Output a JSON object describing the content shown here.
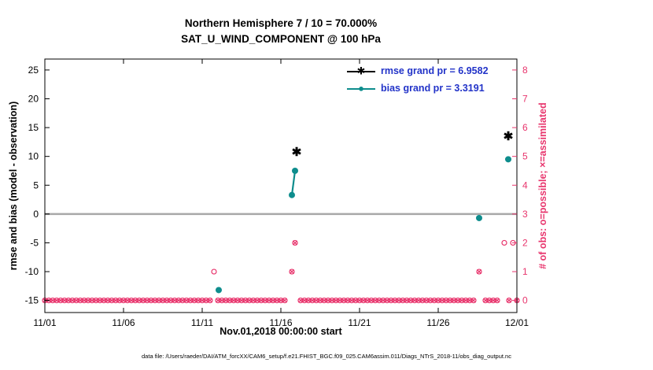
{
  "footer": {
    "text": "data file: /Users/raeder/DAI/ATM_forcXX/CAM6_setup/f.e21.FHIST_BGC.f09_025.CAM6assim.011/Diags_NTrS_2018-11/obs_diag_output.nc"
  },
  "chart_data": {
    "type": "line",
    "title": "Northern Hemisphere 7 / 10 = 70.000%",
    "subtitle": "SAT_U_WIND_COMPONENT @ 100 hPa",
    "xlabel": "Nov.01,2018 00:00:00 start",
    "ylabel_left": "rmse and bias (model - observation)",
    "ylabel_right": "# of obs: o=possible; ×=assimilated",
    "xlim": [
      0,
      30
    ],
    "ylim_left": [
      -17.1,
      26.9
    ],
    "x_ticks": [
      {
        "day": 0,
        "label": "11/01"
      },
      {
        "day": 5,
        "label": "11/06"
      },
      {
        "day": 10,
        "label": "11/11"
      },
      {
        "day": 15,
        "label": "11/16"
      },
      {
        "day": 20,
        "label": "11/21"
      },
      {
        "day": 25,
        "label": "11/26"
      },
      {
        "day": 30,
        "label": "12/01"
      }
    ],
    "y_ticks_left": [
      -15,
      -10,
      -5,
      0,
      5,
      10,
      15,
      20,
      25
    ],
    "y_ticks_right": [
      0,
      1,
      2,
      3,
      4,
      5,
      6,
      7,
      8
    ],
    "right_count_to_left": {
      "offset": -15,
      "scale": 5
    },
    "zero_line_value": 0,
    "colors": {
      "rmse": "#000000",
      "bias": "#0e8d8d",
      "obs": "#e8356d",
      "zero_line": "#a8a8a8",
      "legend_text": "#2233c8"
    },
    "series": {
      "rmse": {
        "label": "rmse grand pr = 6.9582",
        "marker": "✱",
        "polylines": [
          [
            {
              "day": 16.0,
              "value": 10.8
            }
          ],
          [
            {
              "day": 29.45,
              "value": 13.5
            }
          ]
        ]
      },
      "bias": {
        "label": "bias grand pr = 3.3191",
        "marker": "●",
        "polylines": [
          [
            {
              "day": 11.05,
              "value": -13.2
            }
          ],
          [
            {
              "day": 15.7,
              "value": 3.3
            },
            {
              "day": 15.9,
              "value": 7.5
            }
          ],
          [
            {
              "day": 27.6,
              "value": -0.7
            }
          ],
          [
            {
              "day": 29.45,
              "value": 9.5
            }
          ]
        ]
      }
    },
    "observations": {
      "possible": [
        {
          "day": 10.75,
          "count": 1
        },
        {
          "day": 15.7,
          "count": 1
        },
        {
          "day": 15.9,
          "count": 2
        },
        {
          "day": 27.6,
          "count": 1
        },
        {
          "day": 29.2,
          "count": 2
        },
        {
          "day": 29.75,
          "count": 2
        }
      ],
      "assimilated": [
        {
          "day": 15.7,
          "count": 1
        },
        {
          "day": 15.9,
          "count": 2
        },
        {
          "day": 27.6,
          "count": 1
        }
      ],
      "zero_baseline": {
        "start": 0,
        "end": 30,
        "step": 0.25
      }
    },
    "legend_position": "upper-right"
  }
}
